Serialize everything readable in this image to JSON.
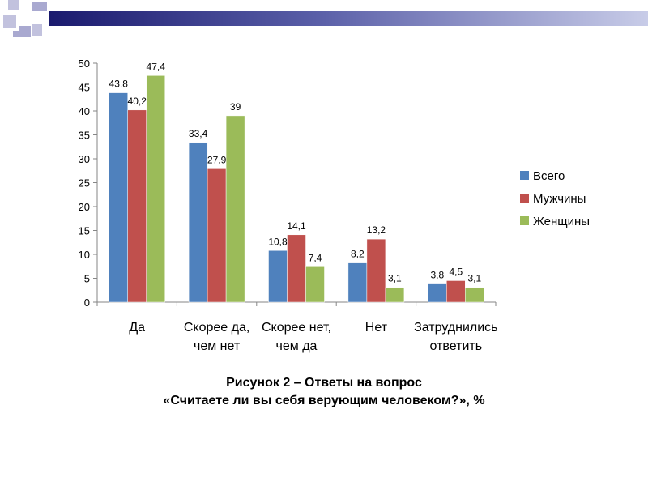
{
  "chart_data": {
    "type": "bar",
    "categories": [
      [
        "Да"
      ],
      [
        "Скорее да,",
        "чем нет"
      ],
      [
        "Скорее нет,",
        "чем да"
      ],
      [
        "Нет"
      ],
      [
        "Затруднились",
        "ответить"
      ]
    ],
    "series": [
      {
        "name": "Всего",
        "color": "#4F81BD",
        "values": [
          43.8,
          33.4,
          10.8,
          8.2,
          3.8
        ],
        "labels": [
          "43,8",
          "33,4",
          "10,8",
          "8,2",
          "3,8"
        ]
      },
      {
        "name": "Мужчины",
        "color": "#C0504D",
        "values": [
          40.2,
          27.9,
          14.1,
          13.2,
          4.5
        ],
        "labels": [
          "40,2",
          "27,9",
          "14,1",
          "13,2",
          "4,5"
        ]
      },
      {
        "name": "Женщины",
        "color": "#9BBB59",
        "values": [
          47.4,
          39,
          7.4,
          3.1,
          3.1
        ],
        "labels": [
          "47,4",
          "39",
          "7,4",
          "3,1",
          "3,1"
        ]
      }
    ],
    "ylim": [
      0,
      50
    ],
    "yticks": [
      0,
      5,
      10,
      15,
      20,
      25,
      30,
      35,
      40,
      45,
      50
    ],
    "legend_position": "right",
    "grid": false
  },
  "caption": {
    "line1": "Рисунок 2 – Ответы на вопрос",
    "line2": "«Считаете ли вы себя верующим человеком?», %"
  },
  "decor_colors": {
    "banner_dark": "#1A1A6E",
    "banner_light": "#C8CCE8",
    "squares": "#9A9AC8"
  }
}
